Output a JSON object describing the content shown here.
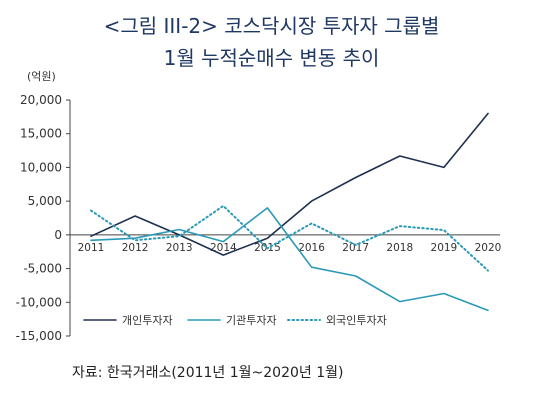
{
  "title_line1": "<그림 III-2> 코스닥시장 투자자 그룹별",
  "title_line2": "1월 누적순매수 변동 추이",
  "source": "자료: 한국거래소(2011년 1월~2020년 1월)",
  "chart_data": {
    "type": "line",
    "unit_label": "(억원)",
    "categories": [
      "2011",
      "2012",
      "2013",
      "2014",
      "2015",
      "2016",
      "2017",
      "2018",
      "2019",
      "2020"
    ],
    "ylim": [
      -15000,
      20000
    ],
    "yticks": [
      20000,
      15000,
      10000,
      5000,
      0,
      -5000,
      -10000,
      -15000
    ],
    "ytick_labels": [
      "20,000",
      "15,000",
      "10,000",
      "5,000",
      "0",
      "-5,000",
      "-10,000",
      "-15,000"
    ],
    "grid": false,
    "legend_position": "bottom-left",
    "series": [
      {
        "name": "개인투자자",
        "color": "#1f3050",
        "style": "solid",
        "values": [
          -200,
          2800,
          0,
          -3000,
          -500,
          5000,
          8500,
          11700,
          10000,
          18000
        ]
      },
      {
        "name": "기관투자자",
        "color": "#2a9ab8",
        "style": "solid",
        "values": [
          -800,
          -500,
          800,
          -1000,
          4000,
          -4800,
          -6100,
          -9900,
          -8700,
          -11200
        ]
      },
      {
        "name": "외국인투자자",
        "color": "#2a9ab8",
        "style": "dotted",
        "values": [
          3600,
          -800,
          -200,
          4300,
          -2000,
          1700,
          -1500,
          1300,
          700,
          -5300
        ]
      }
    ]
  }
}
